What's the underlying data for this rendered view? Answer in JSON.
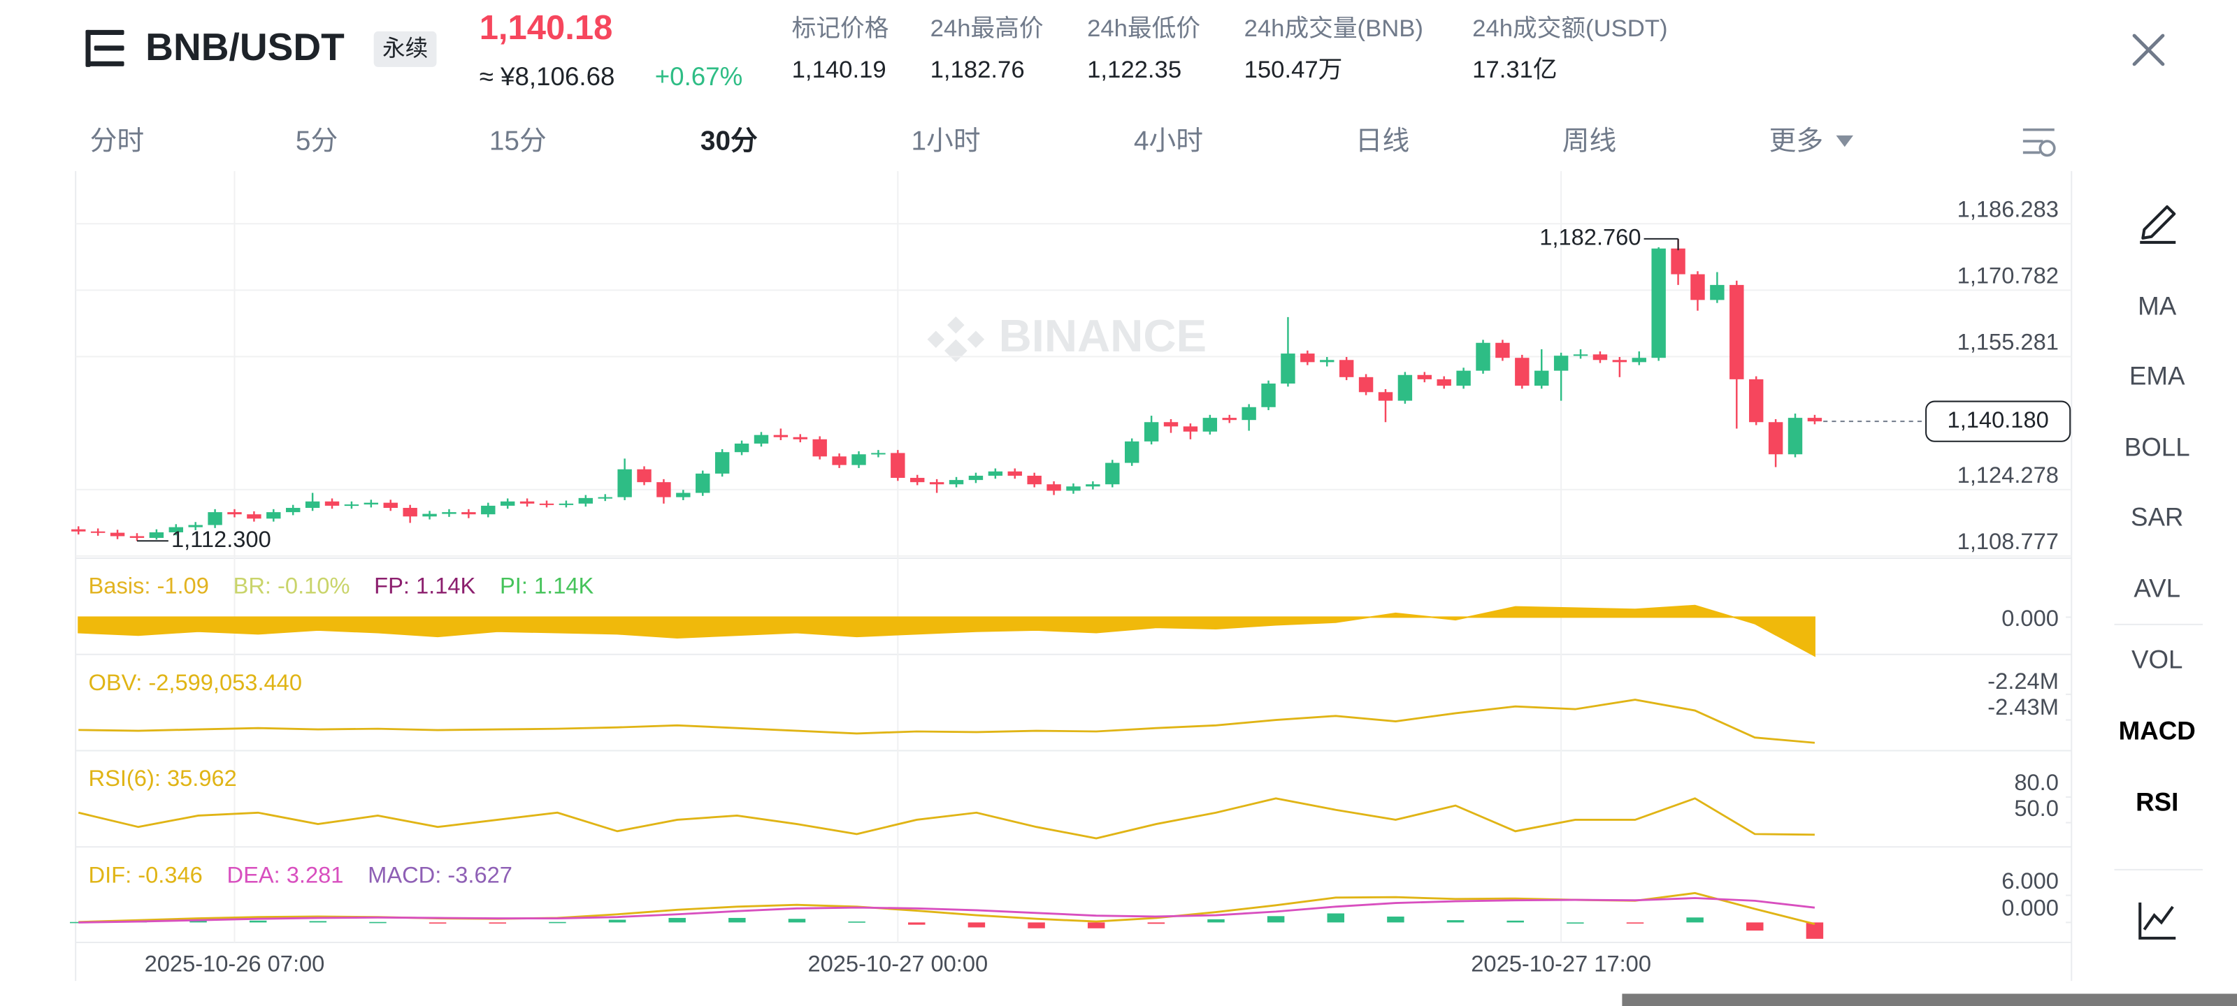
{
  "header": {
    "symbol": "BNB/USDT",
    "contract": "永续",
    "last_price": "1,140.18",
    "cny_price": "≈ ¥8,106.68",
    "change": "+0.67%",
    "stats": [
      {
        "label": "标记价格",
        "value": "1,140.19"
      },
      {
        "label": "24h最高价",
        "value": "1,182.76"
      },
      {
        "label": "24h最低价",
        "value": "1,122.35"
      },
      {
        "label": "24h成交量(BNB)",
        "value": "150.47万"
      },
      {
        "label": "24h成交额(USDT)",
        "value": "17.31亿"
      }
    ]
  },
  "intervals": {
    "items": [
      "分时",
      "5分",
      "15分",
      "30分",
      "1小时",
      "4小时",
      "日线",
      "周线",
      "更多"
    ],
    "active": "30分"
  },
  "indicator_menu": {
    "items": [
      "MA",
      "EMA",
      "BOLL",
      "SAR",
      "AVL",
      "VOL",
      "MACD",
      "RSI"
    ],
    "active": [
      "MACD",
      "RSI"
    ]
  },
  "chart_data": [
    {
      "type": "candlestick",
      "watermark": "BINANCE",
      "up_color": "#2ebd85",
      "down_color": "#f6465d",
      "grid": true,
      "ylim": [
        1108.3,
        1196.9
      ],
      "yticks": [
        {
          "value": 1186.283,
          "label": "1,186.283"
        },
        {
          "value": 1170.782,
          "label": "1,170.782"
        },
        {
          "value": 1155.281,
          "label": "1,155.281"
        },
        {
          "value": 1124.278,
          "label": "1,124.278"
        },
        {
          "value": 1108.777,
          "label": "1,108.777"
        }
      ],
      "xticks": [
        {
          "value": 8,
          "label": "2025-10-26 07:00"
        },
        {
          "value": 42,
          "label": "2025-10-27 00:00"
        },
        {
          "value": 76,
          "label": "2025-10-27 17:00"
        }
      ],
      "last": {
        "value": 1140.18,
        "label": "1,140.180"
      },
      "max_label": {
        "value": 1182.76,
        "label": "1,182.760"
      },
      "min_label": {
        "value": 1112.3,
        "label": "1,112.300"
      },
      "candles": [
        [
          1115.0,
          1115.7,
          1113.8,
          1114.5
        ],
        [
          1114.5,
          1115.2,
          1113.5,
          1114.2
        ],
        [
          1114.2,
          1114.9,
          1112.7,
          1113.4
        ],
        [
          1113.4,
          1114.1,
          1112.3,
          1113.0
        ],
        [
          1113.0,
          1115.0,
          1112.6,
          1114.3
        ],
        [
          1114.3,
          1116.2,
          1113.6,
          1115.5
        ],
        [
          1115.5,
          1116.7,
          1114.8,
          1116.0
        ],
        [
          1116.0,
          1119.7,
          1115.3,
          1119.0
        ],
        [
          1119.0,
          1119.7,
          1117.8,
          1118.5
        ],
        [
          1118.5,
          1119.2,
          1116.8,
          1117.5
        ],
        [
          1117.5,
          1119.7,
          1116.8,
          1119.0
        ],
        [
          1119.0,
          1120.7,
          1118.3,
          1120.0
        ],
        [
          1120.0,
          1123.5,
          1119.3,
          1121.5
        ],
        [
          1121.5,
          1122.2,
          1119.8,
          1120.5
        ],
        [
          1120.5,
          1121.5,
          1119.8,
          1120.8
        ],
        [
          1120.8,
          1121.9,
          1120.1,
          1121.2
        ],
        [
          1121.2,
          1121.9,
          1119.3,
          1120.0
        ],
        [
          1120.0,
          1120.7,
          1116.5,
          1118.0
        ],
        [
          1118.0,
          1119.3,
          1117.3,
          1118.6
        ],
        [
          1118.6,
          1119.7,
          1117.9,
          1119.0
        ],
        [
          1119.0,
          1119.7,
          1117.6,
          1118.5
        ],
        [
          1118.5,
          1121.2,
          1117.8,
          1120.5
        ],
        [
          1120.5,
          1122.2,
          1119.8,
          1121.5
        ],
        [
          1121.5,
          1122.2,
          1120.3,
          1121.0
        ],
        [
          1121.0,
          1121.7,
          1120.1,
          1120.8
        ],
        [
          1120.8,
          1121.7,
          1120.1,
          1121.0
        ],
        [
          1121.0,
          1123.0,
          1120.3,
          1122.3
        ],
        [
          1122.3,
          1123.2,
          1121.6,
          1122.5
        ],
        [
          1122.5,
          1131.5,
          1121.8,
          1129.0
        ],
        [
          1129.0,
          1129.7,
          1125.3,
          1126.0
        ],
        [
          1126.0,
          1126.7,
          1121.0,
          1122.5
        ],
        [
          1122.5,
          1124.2,
          1121.8,
          1123.5
        ],
        [
          1123.5,
          1128.7,
          1122.8,
          1128.0
        ],
        [
          1128.0,
          1133.7,
          1127.3,
          1133.0
        ],
        [
          1133.0,
          1135.7,
          1132.3,
          1135.0
        ],
        [
          1135.0,
          1137.7,
          1134.3,
          1137.0
        ],
        [
          1137.0,
          1138.5,
          1135.8,
          1136.5
        ],
        [
          1136.5,
          1137.2,
          1135.3,
          1136.0
        ],
        [
          1136.0,
          1136.7,
          1131.3,
          1132.0
        ],
        [
          1132.0,
          1132.7,
          1129.3,
          1130.0
        ],
        [
          1130.0,
          1133.2,
          1129.3,
          1132.5
        ],
        [
          1132.5,
          1133.5,
          1131.8,
          1132.8
        ],
        [
          1132.8,
          1133.5,
          1126.3,
          1127.0
        ],
        [
          1127.0,
          1127.7,
          1125.3,
          1126.0
        ],
        [
          1126.0,
          1126.7,
          1123.5,
          1125.5
        ],
        [
          1125.5,
          1127.2,
          1124.8,
          1126.5
        ],
        [
          1126.5,
          1128.2,
          1125.8,
          1127.5
        ],
        [
          1127.5,
          1129.2,
          1126.8,
          1128.5
        ],
        [
          1128.5,
          1129.2,
          1126.8,
          1127.5
        ],
        [
          1127.5,
          1128.2,
          1124.8,
          1125.5
        ],
        [
          1125.5,
          1126.2,
          1123.0,
          1124.0
        ],
        [
          1124.0,
          1125.7,
          1123.3,
          1125.0
        ],
        [
          1125.0,
          1126.2,
          1124.3,
          1125.5
        ],
        [
          1125.5,
          1131.2,
          1124.8,
          1130.5
        ],
        [
          1130.5,
          1136.2,
          1129.8,
          1135.5
        ],
        [
          1135.5,
          1141.5,
          1134.8,
          1140.0
        ],
        [
          1140.0,
          1140.7,
          1137.5,
          1139.0
        ],
        [
          1139.0,
          1139.7,
          1136.0,
          1137.8
        ],
        [
          1137.8,
          1141.7,
          1137.1,
          1141.0
        ],
        [
          1141.0,
          1141.7,
          1139.8,
          1140.5
        ],
        [
          1140.5,
          1144.2,
          1138.0,
          1143.5
        ],
        [
          1143.5,
          1149.7,
          1142.8,
          1149.0
        ],
        [
          1149.0,
          1164.5,
          1148.3,
          1156.0
        ],
        [
          1156.0,
          1156.7,
          1153.3,
          1154.0
        ],
        [
          1154.0,
          1155.2,
          1153.0,
          1154.5
        ],
        [
          1154.5,
          1155.2,
          1149.8,
          1150.5
        ],
        [
          1150.5,
          1151.2,
          1146.3,
          1147.0
        ],
        [
          1147.0,
          1147.7,
          1140.0,
          1145.0
        ],
        [
          1145.0,
          1151.7,
          1144.3,
          1151.0
        ],
        [
          1151.0,
          1151.7,
          1149.3,
          1150.0
        ],
        [
          1150.0,
          1150.7,
          1147.8,
          1148.5
        ],
        [
          1148.5,
          1152.7,
          1147.8,
          1152.0
        ],
        [
          1152.0,
          1159.2,
          1151.3,
          1158.5
        ],
        [
          1158.5,
          1159.2,
          1154.3,
          1155.0
        ],
        [
          1155.0,
          1155.7,
          1147.8,
          1148.5
        ],
        [
          1148.5,
          1157.0,
          1147.8,
          1152.0
        ],
        [
          1152.0,
          1156.2,
          1145.0,
          1155.5
        ],
        [
          1155.5,
          1157.0,
          1154.8,
          1155.8
        ],
        [
          1155.8,
          1156.5,
          1153.8,
          1154.5
        ],
        [
          1154.5,
          1155.2,
          1150.5,
          1154.0
        ],
        [
          1154.0,
          1156.5,
          1153.3,
          1155.0
        ],
        [
          1155.0,
          1180.8,
          1154.3,
          1180.5
        ],
        [
          1180.5,
          1182.76,
          1172.0,
          1174.5
        ],
        [
          1174.5,
          1175.2,
          1166.0,
          1168.5
        ],
        [
          1168.5,
          1175.0,
          1167.8,
          1172.0
        ],
        [
          1172.0,
          1173.0,
          1138.5,
          1150.0
        ],
        [
          1150.0,
          1150.7,
          1139.3,
          1140.0
        ],
        [
          1140.0,
          1140.7,
          1129.5,
          1132.5
        ],
        [
          1132.5,
          1142.0,
          1131.8,
          1141.0
        ],
        [
          1141.0,
          1141.7,
          1139.5,
          1140.18
        ]
      ]
    },
    {
      "type": "area",
      "color": "#f0b90b",
      "legend": [
        {
          "text": "Basis: -1.09",
          "color": "#e2b320"
        },
        {
          "text": "BR: -0.10%",
          "color": "#c9d46a"
        },
        {
          "text": "FP: 1.14K",
          "color": "#8c1f6e"
        },
        {
          "text": "PI: 1.14K",
          "color": "#45c35a"
        }
      ],
      "ylim": [
        -3,
        1.2
      ],
      "yticks": [
        {
          "value": 0,
          "label": "0.000"
        }
      ],
      "values": [
        -1.2,
        -1.4,
        -1.1,
        -1.3,
        -1.0,
        -1.2,
        -1.5,
        -1.1,
        -1.2,
        -1.3,
        -1.6,
        -1.4,
        -1.2,
        -1.5,
        -1.3,
        -1.1,
        -1.0,
        -1.2,
        -0.8,
        -0.9,
        -0.6,
        -0.4,
        0.3,
        -0.2,
        0.8,
        0.7,
        0.6,
        0.9,
        -0.5,
        -3.0
      ]
    },
    {
      "type": "line",
      "color": "#e0b415",
      "legend": [
        {
          "text": "OBV: -2,599,053.440",
          "color": "#e0b415"
        }
      ],
      "ylim": [
        -2652000,
        -1955000
      ],
      "yticks": [
        {
          "value": -2240000,
          "label": "-2.24M"
        },
        {
          "value": -2430000,
          "label": "-2.43M"
        }
      ],
      "values": [
        -2504000,
        -2510000,
        -2500000,
        -2490000,
        -2500000,
        -2495000,
        -2505000,
        -2500000,
        -2495000,
        -2485000,
        -2470000,
        -2490000,
        -2510000,
        -2530000,
        -2515000,
        -2520000,
        -2510000,
        -2515000,
        -2490000,
        -2470000,
        -2430000,
        -2400000,
        -2440000,
        -2380000,
        -2330000,
        -2350000,
        -2280000,
        -2360000,
        -2560000,
        -2599053.44
      ]
    },
    {
      "type": "line",
      "color": "#e0b415",
      "legend": [
        {
          "text": "RSI(6): 35.962",
          "color": "#e0b415"
        }
      ],
      "ylim": [
        21.7,
        131.7
      ],
      "yticks": [
        {
          "value": 80,
          "label": "80.0"
        },
        {
          "value": 50,
          "label": "50.0"
        }
      ],
      "values": [
        61.7,
        45.0,
        58.3,
        61.7,
        48.4,
        58.3,
        45.0,
        53.4,
        61.7,
        40.0,
        53.4,
        58.3,
        48.4,
        36.7,
        53.4,
        61.7,
        45.0,
        31.7,
        48.4,
        61.7,
        78.4,
        65.0,
        53.4,
        70.0,
        40.0,
        53.4,
        53.4,
        78.4,
        36.7,
        35.962
      ]
    },
    {
      "type": "macd",
      "up_color": "#2ebd85",
      "down_color": "#f6465d",
      "legend": [
        {
          "text": "DIF: -0.346",
          "color": "#e0b415"
        },
        {
          "text": "DEA: 3.281",
          "color": "#d84fbf"
        },
        {
          "text": "MACD: -3.627",
          "color": "#8e5fb5"
        }
      ],
      "ylim": [
        -4.74,
        14.84
      ],
      "yticks": [
        {
          "value": 6,
          "label": "6.000"
        },
        {
          "value": 0,
          "label": "0.000"
        }
      ],
      "series": [
        {
          "color": "#e0b415",
          "values": [
            0.1,
            0.5,
            0.9,
            1.2,
            1.3,
            1.2,
            0.9,
            0.8,
            1.0,
            1.8,
            2.8,
            3.5,
            3.9,
            3.5,
            2.6,
            1.6,
            0.8,
            0.2,
            1.0,
            2.3,
            3.8,
            5.5,
            5.6,
            5.2,
            5.3,
            5.0,
            4.8,
            6.5,
            3.0,
            -0.346
          ]
        },
        {
          "color": "#d84fbf",
          "values": [
            0.0,
            0.2,
            0.5,
            0.8,
            1.0,
            1.1,
            1.0,
            0.9,
            0.9,
            1.2,
            1.8,
            2.5,
            3.1,
            3.3,
            3.1,
            2.7,
            2.1,
            1.5,
            1.3,
            1.6,
            2.4,
            3.5,
            4.3,
            4.7,
            4.9,
            5.0,
            4.9,
            5.4,
            4.8,
            3.281
          ]
        }
      ],
      "histogram": [
        0.1,
        0.3,
        0.4,
        0.4,
        0.3,
        0.1,
        -0.1,
        -0.1,
        0.1,
        0.6,
        1.0,
        1.0,
        0.8,
        0.2,
        -0.5,
        -1.1,
        -1.3,
        -1.3,
        -0.3,
        0.7,
        1.4,
        2.0,
        1.3,
        0.5,
        0.4,
        0.0,
        -0.1,
        1.1,
        -1.8,
        -3.627
      ]
    }
  ]
}
